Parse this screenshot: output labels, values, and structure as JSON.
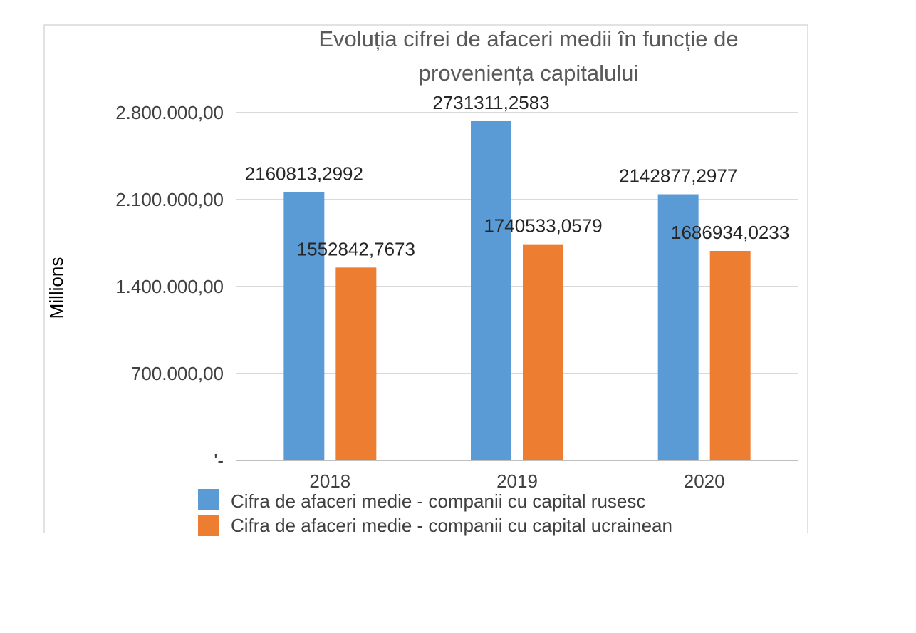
{
  "chart_data": {
    "type": "bar",
    "title_lines": [
      "Evoluția cifrei de afaceri medii în funcție de",
      "proveniența capitalului"
    ],
    "ylabel": "Millions",
    "xlabel": "",
    "categories": [
      "2018",
      "2019",
      "2020"
    ],
    "ylim": [
      0,
      2800000
    ],
    "yticks": [
      0,
      700000,
      1400000,
      2100000,
      2800000
    ],
    "ytick_labels": [
      "'-",
      "700.000,00",
      "1.400.000,00",
      "2.100.000,00",
      "2.800.000,00"
    ],
    "grid": true,
    "legend_position": "bottom",
    "series": [
      {
        "name": "Cifra de afaceri medie - companii cu capital rusesc",
        "color": "#5b9bd5",
        "values": [
          2160813.2992,
          2731311.2583,
          2142877.2977
        ],
        "labels": [
          "2160813,2992",
          "2731311,2583",
          "2142877,2977"
        ]
      },
      {
        "name": "Cifra de afaceri medie - companii cu capital ucrainean",
        "color": "#ed7d31",
        "values": [
          1552842.7673,
          1740533.0579,
          1686934.0233
        ],
        "labels": [
          "1552842,7673",
          "1740533,0579",
          "1686934,0233"
        ]
      }
    ]
  }
}
